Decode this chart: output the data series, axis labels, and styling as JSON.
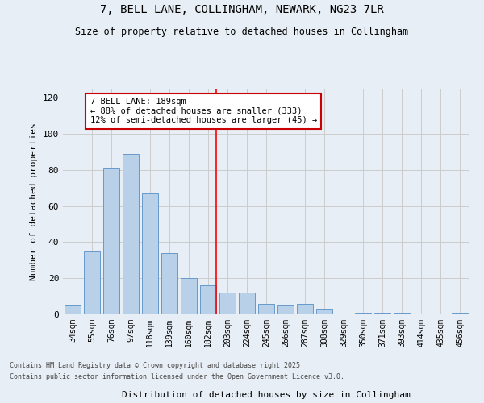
{
  "title_line1": "7, BELL LANE, COLLINGHAM, NEWARK, NG23 7LR",
  "title_line2": "Size of property relative to detached houses in Collingham",
  "xlabel": "Distribution of detached houses by size in Collingham",
  "ylabel": "Number of detached properties",
  "categories": [
    "34sqm",
    "55sqm",
    "76sqm",
    "97sqm",
    "118sqm",
    "139sqm",
    "160sqm",
    "182sqm",
    "203sqm",
    "224sqm",
    "245sqm",
    "266sqm",
    "287sqm",
    "308sqm",
    "329sqm",
    "350sqm",
    "371sqm",
    "393sqm",
    "414sqm",
    "435sqm",
    "456sqm"
  ],
  "values": [
    5,
    35,
    81,
    89,
    67,
    34,
    20,
    16,
    12,
    12,
    6,
    5,
    6,
    3,
    0,
    1,
    1,
    1,
    0,
    0,
    1
  ],
  "bar_color": "#b8d0e8",
  "bar_edge_color": "#6699cc",
  "grid_color": "#cccccc",
  "bg_color": "#e8eef5",
  "redline_index": 7,
  "annotation_line1": "7 BELL LANE: 189sqm",
  "annotation_line2": "← 88% of detached houses are smaller (333)",
  "annotation_line3": "12% of semi-detached houses are larger (45) →",
  "annotation_box_color": "#ffffff",
  "annotation_box_edge": "#cc0000",
  "ylim": [
    0,
    125
  ],
  "yticks": [
    0,
    20,
    40,
    60,
    80,
    100,
    120
  ],
  "footer_line1": "Contains HM Land Registry data © Crown copyright and database right 2025.",
  "footer_line2": "Contains public sector information licensed under the Open Government Licence v3.0."
}
